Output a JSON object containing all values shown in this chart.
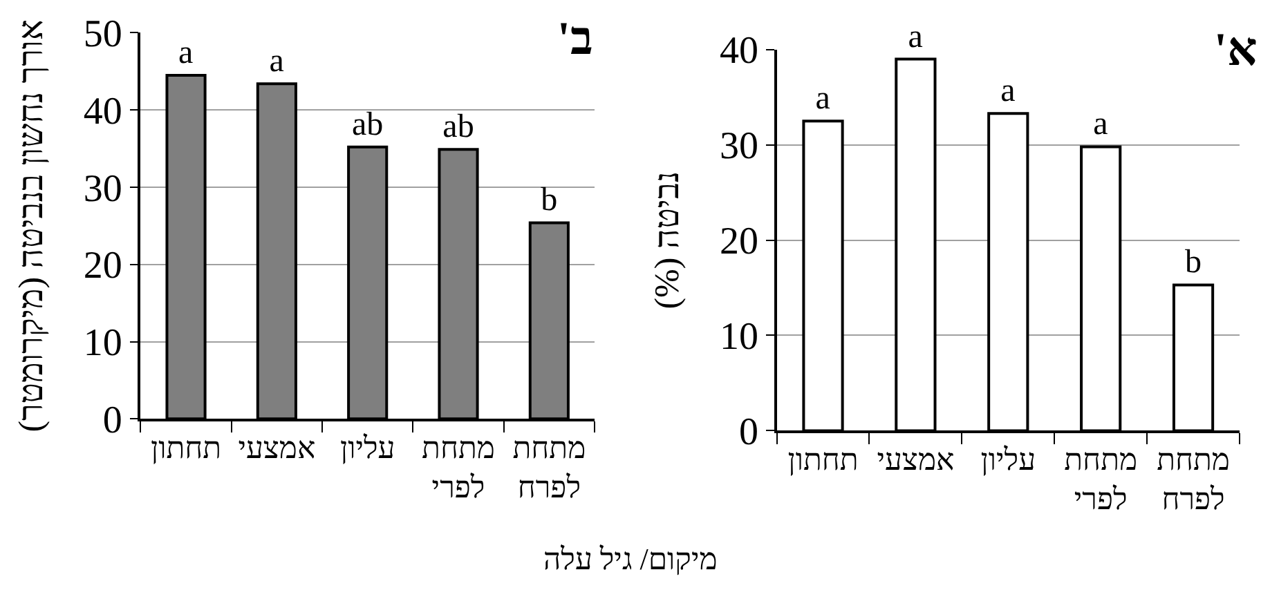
{
  "chart_data": [
    {
      "type": "bar",
      "title": "א'",
      "xlabel": "מיקום/ גיל עלה",
      "ylabel": "נביטה (%)",
      "categories": [
        "תחתון",
        "אמצעי",
        "עליון",
        "מתחת לפרי",
        "מתחת לפרח"
      ],
      "values": [
        32.5,
        39.0,
        33.3,
        29.8,
        15.3
      ],
      "value_labels": [
        "a",
        "a",
        "a",
        "a",
        "b"
      ],
      "color": "#ffffff",
      "ylim": [
        0,
        40
      ],
      "yticks": [
        0,
        10,
        20,
        30,
        40
      ],
      "grid": "y"
    },
    {
      "type": "bar",
      "title": "ב'",
      "ylabel": "אורך נחשון בנביטה (מיקרומטר)",
      "categories": [
        "תחתון",
        "אמצעי",
        "עליון",
        "מתחת לפרי",
        "מתחת לפרח"
      ],
      "values": [
        44.5,
        43.4,
        35.2,
        34.9,
        25.4
      ],
      "value_labels": [
        "a",
        "a",
        "ab",
        "ab",
        "b"
      ],
      "color": "#7f7f7f",
      "ylim": [
        0,
        50
      ],
      "yticks": [
        0,
        10,
        20,
        30,
        40,
        50
      ],
      "grid": "y"
    }
  ]
}
